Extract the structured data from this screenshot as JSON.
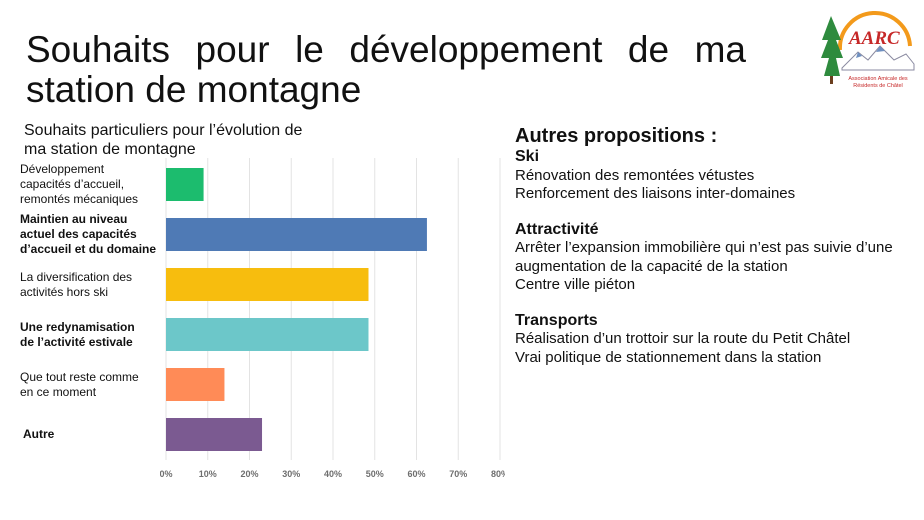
{
  "slide": {
    "title_line1": "Souhaits pour le développement de ma",
    "title_line2": "station de montagne"
  },
  "logo": {
    "text": "AARC",
    "caption_line1": "Association Amicale des",
    "caption_line2": "Résidents de Châtel"
  },
  "chart_data": {
    "type": "bar",
    "orientation": "horizontal",
    "title_line1": "Souhaits particuliers pour l’évolution de",
    "title_line2": "ma station de montagne",
    "categories": [
      [
        "Développement",
        "capacités d’accueil,",
        "remontés mécaniques"
      ],
      [
        "Maintien au niveau",
        "actuel des capacités",
        "d’accueil et du domaine"
      ],
      [
        "La diversification des",
        "activités hors ski"
      ],
      [
        "Une redynamisation",
        "de l’activité estivale"
      ],
      [
        "Que tout reste comme",
        "en ce moment"
      ],
      [
        "Autre"
      ]
    ],
    "bold": [
      false,
      true,
      false,
      true,
      false,
      true
    ],
    "values": [
      9,
      62.5,
      48.5,
      48.5,
      14,
      23
    ],
    "colors": [
      "#1cbc6e",
      "#4f7ab5",
      "#f7bd0e",
      "#6cc7c9",
      "#ff8b57",
      "#7b5a91"
    ],
    "xlim": [
      0,
      80
    ],
    "xticks": [
      "0%",
      "10%",
      "20%",
      "30%",
      "40%",
      "50%",
      "60%",
      "70%",
      "80%"
    ],
    "grid": true,
    "xlabel": "",
    "ylabel": ""
  },
  "proposals": {
    "heading": "Autres propositions :",
    "sections": [
      {
        "title": "Ski",
        "lines": [
          "Rénovation des remontées vétustes",
          "Renforcement des liaisons inter-domaines"
        ]
      },
      {
        "title": "Attractivité",
        "lines": [
          "Arrêter l’expansion immobilière qui n’est pas suivie d’une",
          "augmentation de la capacité de la station",
          "Centre ville piéton"
        ]
      },
      {
        "title": "Transports",
        "lines": [
          "Réalisation d’un trottoir sur la route du Petit Châtel",
          "Vrai politique de stationnement dans la station"
        ]
      }
    ]
  }
}
